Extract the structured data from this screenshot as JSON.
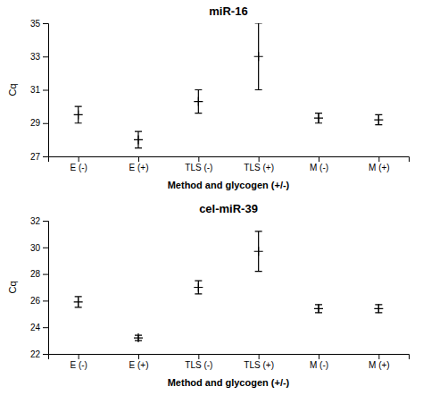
{
  "chart_data": [
    {
      "type": "errorbar",
      "title": "miR-16",
      "ylabel": "Cq",
      "xlabel": "Method and glycogen (+/-)",
      "categories": [
        "E (-)",
        "E (+)",
        "TLS (-)",
        "TLS (+)",
        "M (-)",
        "M (+)"
      ],
      "values": [
        29.5,
        28.0,
        30.3,
        33.0,
        29.3,
        29.2
      ],
      "errors": [
        0.5,
        0.5,
        0.7,
        2.0,
        0.3,
        0.3
      ],
      "ylim": [
        27,
        35
      ],
      "yticks": [
        27,
        29,
        31,
        33,
        35
      ],
      "color": "black",
      "marker": "plus"
    },
    {
      "type": "errorbar",
      "title": "cel-miR-39",
      "ylabel": "Cq",
      "xlabel": "Method and glycogen (+/-)",
      "categories": [
        "E (-)",
        "E (+)",
        "TLS (-)",
        "TLS (+)",
        "M (-)",
        "M (+)"
      ],
      "values": [
        25.9,
        23.2,
        27.0,
        29.7,
        25.4,
        25.4
      ],
      "errors": [
        0.4,
        0.2,
        0.5,
        1.5,
        0.3,
        0.3
      ],
      "ylim": [
        22,
        32
      ],
      "yticks": [
        22,
        24,
        26,
        28,
        30,
        32
      ],
      "color": "black",
      "marker": "plus"
    }
  ]
}
